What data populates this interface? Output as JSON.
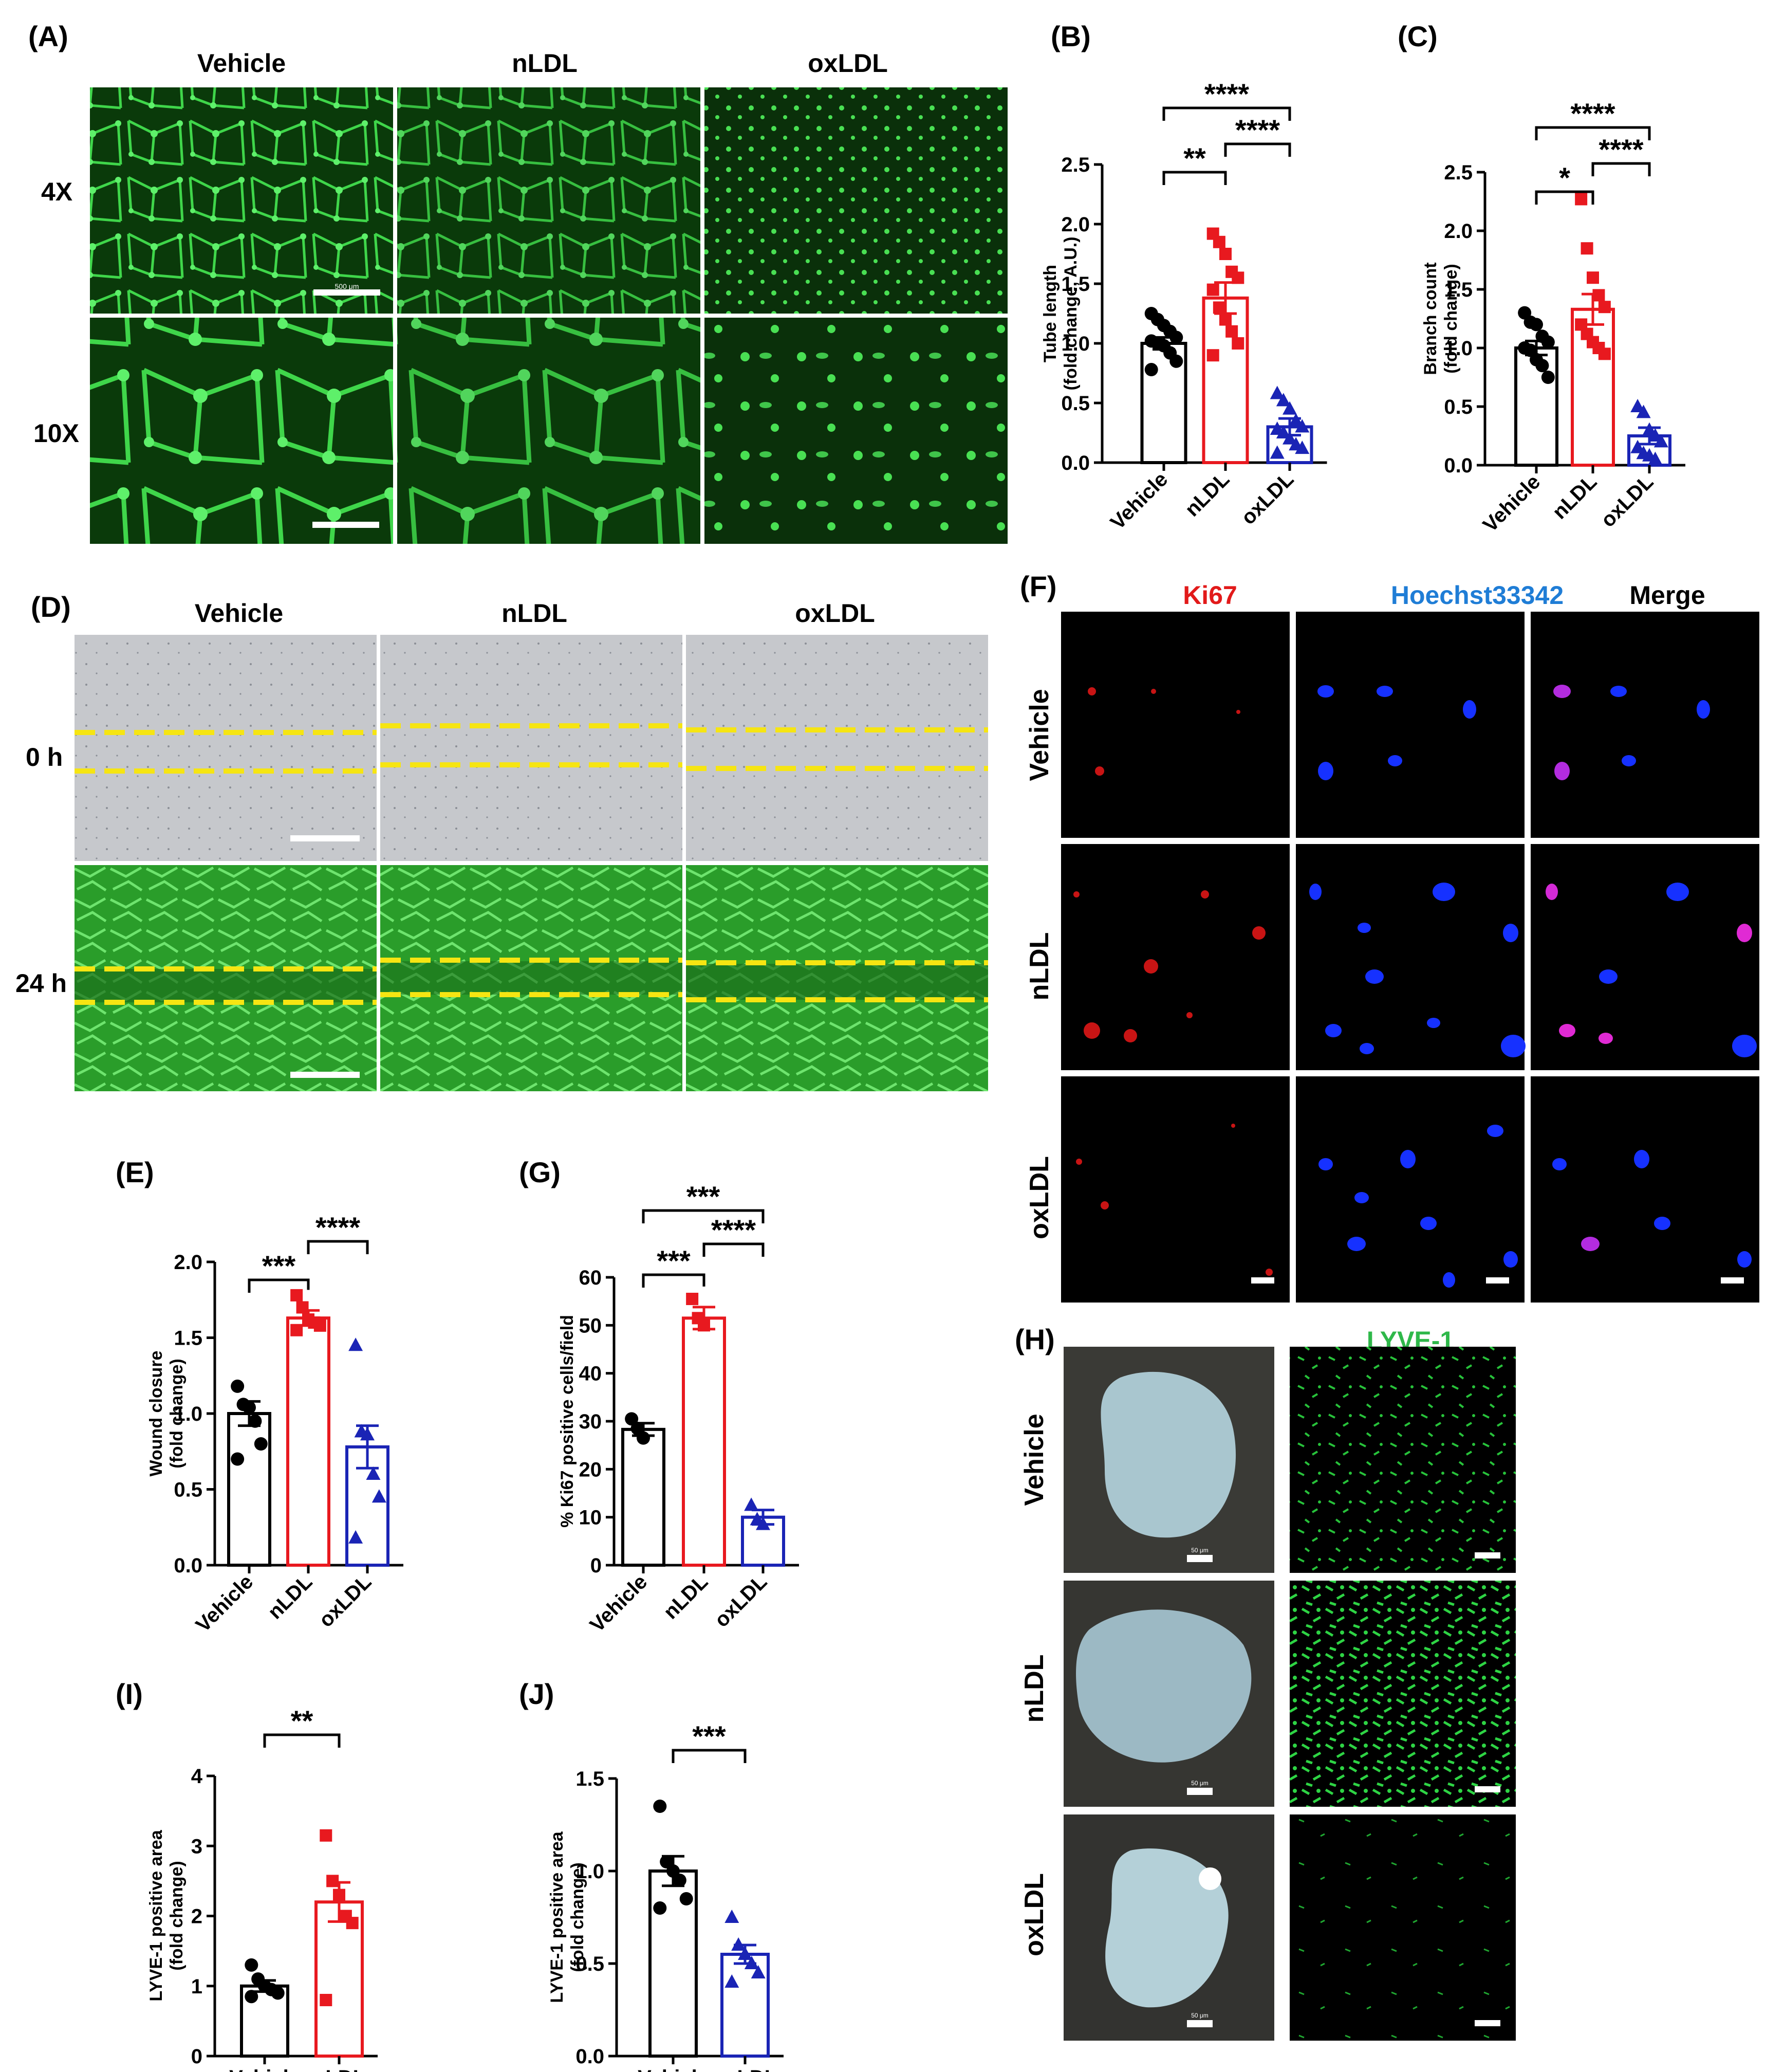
{
  "figure": {
    "panels": [
      {
        "id": "A",
        "label": "(A)"
      },
      {
        "id": "B",
        "label": "(B)"
      },
      {
        "id": "C",
        "label": "(C)"
      },
      {
        "id": "D",
        "label": "(D)"
      },
      {
        "id": "E",
        "label": "(E)"
      },
      {
        "id": "F",
        "label": "(F)"
      },
      {
        "id": "G",
        "label": "(G)"
      },
      {
        "id": "H",
        "label": "(H)"
      },
      {
        "id": "I",
        "label": "(I)"
      },
      {
        "id": "J",
        "label": "(J)"
      }
    ],
    "groups": [
      "Vehicle",
      "nLDL",
      "oxLDL"
    ],
    "panel_a_rows": [
      "4X",
      "10X"
    ],
    "panel_d_rows": [
      "0 h",
      "24 h"
    ],
    "panel_f_channels": [
      "Ki67",
      "Hoechst33342",
      "Merge"
    ],
    "panel_h_channel": "LYVE-1",
    "scale_labels": {
      "a_4x": "500 μm",
      "h": "50 μm"
    },
    "colors": {
      "vehicle": "#000000",
      "nldl": "#e8191f",
      "oxldl": "#1a24b5",
      "ki67": "#e21a1a",
      "hoechst": "#1f7dd6",
      "lyve": "#2fb84a",
      "dashes": "#f6e512"
    }
  },
  "chart_data": [
    {
      "panel": "B",
      "type": "bar",
      "categories": [
        "Vehicle",
        "nLDL",
        "oxLDL"
      ],
      "values": [
        1.0,
        1.38,
        0.3
      ],
      "errors": [
        0.05,
        0.13,
        0.07
      ],
      "points": [
        [
          1.25,
          1.2,
          1.15,
          1.1,
          1.05,
          1.02,
          1.0,
          0.98,
          0.92,
          0.85,
          0.78
        ],
        [
          1.92,
          1.85,
          1.75,
          1.6,
          1.55,
          1.45,
          1.3,
          1.2,
          1.1,
          1.0,
          0.9
        ],
        [
          0.58,
          0.52,
          0.45,
          0.35,
          0.3,
          0.28,
          0.25,
          0.2,
          0.15,
          0.12,
          0.08
        ]
      ],
      "ylabel": "Tube length\n(fold change, A.U.)",
      "ylim": [
        0,
        2.5
      ],
      "yticks": [
        "0.0",
        "0.5",
        "1.0",
        "1.5",
        "2.0",
        "2.5"
      ],
      "significance": [
        {
          "from": 0,
          "to": 2,
          "label": "****"
        },
        {
          "from": 1,
          "to": 2,
          "label": "****"
        },
        {
          "from": 0,
          "to": 1,
          "label": "**"
        }
      ]
    },
    {
      "panel": "C",
      "type": "bar",
      "categories": [
        "Vehicle",
        "nLDL",
        "oxLDL"
      ],
      "values": [
        1.0,
        1.33,
        0.25
      ],
      "errors": [
        0.06,
        0.13,
        0.07
      ],
      "points": [
        [
          1.3,
          1.22,
          1.2,
          1.1,
          1.05,
          1.0,
          0.98,
          0.9,
          0.85,
          0.75
        ],
        [
          2.27,
          1.85,
          1.6,
          1.45,
          1.35,
          1.2,
          1.12,
          1.05,
          1.0,
          0.95
        ],
        [
          0.5,
          0.45,
          0.3,
          0.25,
          0.2,
          0.15,
          0.1,
          0.08,
          0.05
        ]
      ],
      "ylabel": "Branch count\n(fold change)",
      "ylim": [
        0,
        2.5
      ],
      "yticks": [
        "0.0",
        "0.5",
        "1.0",
        "1.5",
        "2.0",
        "2.5"
      ],
      "significance": [
        {
          "from": 0,
          "to": 2,
          "label": "****"
        },
        {
          "from": 1,
          "to": 2,
          "label": "****"
        },
        {
          "from": 0,
          "to": 1,
          "label": "*"
        }
      ]
    },
    {
      "panel": "E",
      "type": "bar",
      "categories": [
        "Vehicle",
        "nLDL",
        "oxLDL"
      ],
      "values": [
        1.0,
        1.63,
        0.78
      ],
      "errors": [
        0.08,
        0.05,
        0.14
      ],
      "points": [
        [
          1.18,
          1.06,
          1.04,
          0.95,
          0.8,
          0.7
        ],
        [
          1.78,
          1.7,
          1.62,
          1.6,
          1.58,
          1.55
        ],
        [
          1.45,
          0.88,
          0.86,
          0.6,
          0.45,
          0.18
        ]
      ],
      "ylabel": "Wound closure\n(fold change)",
      "ylim": [
        0,
        2.0
      ],
      "yticks": [
        "0.0",
        "0.5",
        "1.0",
        "1.5",
        "2.0"
      ],
      "significance": [
        {
          "from": 1,
          "to": 2,
          "label": "****"
        },
        {
          "from": 0,
          "to": 1,
          "label": "***"
        }
      ]
    },
    {
      "panel": "G",
      "type": "bar",
      "categories": [
        "Vehicle",
        "nLDL",
        "oxLDL"
      ],
      "values": [
        28.3,
        51.5,
        10.0
      ],
      "errors": [
        1.3,
        2.3,
        1.5
      ],
      "points": [
        [
          30.5,
          28.5,
          26.5
        ],
        [
          55.5,
          51.5,
          50.0
        ],
        [
          12.5,
          9.5,
          8.5
        ]
      ],
      "ylabel": "% Ki67 positive cells/field",
      "ylim": [
        0,
        60
      ],
      "yticks": [
        "0",
        "10",
        "20",
        "30",
        "40",
        "50",
        "60"
      ],
      "significance": [
        {
          "from": 0,
          "to": 2,
          "label": "***"
        },
        {
          "from": 1,
          "to": 2,
          "label": "****"
        },
        {
          "from": 0,
          "to": 1,
          "label": "***"
        }
      ]
    },
    {
      "panel": "I",
      "type": "bar",
      "categories": [
        "Vehicle",
        "nLDL"
      ],
      "values": [
        1.0,
        2.2
      ],
      "errors": [
        0.08,
        0.28
      ],
      "points": [
        [
          1.3,
          1.1,
          1.0,
          0.95,
          0.9,
          0.85
        ],
        [
          3.15,
          2.5,
          2.3,
          2.0,
          1.9,
          0.8
        ]
      ],
      "ylabel": "LYVE-1 positive area\n(fold change)",
      "ylim": [
        0,
        4
      ],
      "yticks": [
        "0",
        "1",
        "2",
        "3",
        "4"
      ],
      "significance": [
        {
          "from": 0,
          "to": 1,
          "label": "**"
        }
      ]
    },
    {
      "panel": "J",
      "type": "bar",
      "categories": [
        "Vehicle",
        "oxLDL"
      ],
      "values": [
        1.0,
        0.55
      ],
      "errors": [
        0.08,
        0.05
      ],
      "points": [
        [
          1.35,
          1.05,
          1.0,
          0.95,
          0.85,
          0.8
        ],
        [
          0.75,
          0.6,
          0.55,
          0.5,
          0.45,
          0.4
        ]
      ],
      "ylabel": "LYVE-1 positive area\n(fold change)",
      "ylim": [
        0,
        1.5
      ],
      "yticks": [
        "0.0",
        "0.5",
        "1.0",
        "1.5"
      ],
      "significance": [
        {
          "from": 0,
          "to": 1,
          "label": "***"
        }
      ]
    }
  ]
}
